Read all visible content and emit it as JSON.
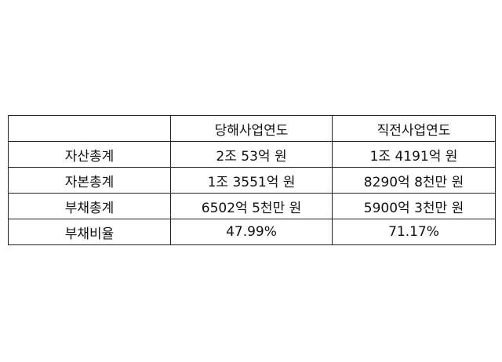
{
  "table": {
    "headers": [
      "",
      "당해사업연도",
      "직전사업연도"
    ],
    "rows": [
      {
        "label": "자산총계",
        "current": "2조 53억 원",
        "previous": "1조 4191억 원"
      },
      {
        "label": "자본총계",
        "current": "1조 3551억 원",
        "previous": "8290억 8천만 원"
      },
      {
        "label": "부채총계",
        "current": "6502억 5천만 원",
        "previous": "5900억 3천만 원"
      },
      {
        "label": "부채비율",
        "current": "47.99%",
        "previous": "71.17%"
      }
    ]
  }
}
